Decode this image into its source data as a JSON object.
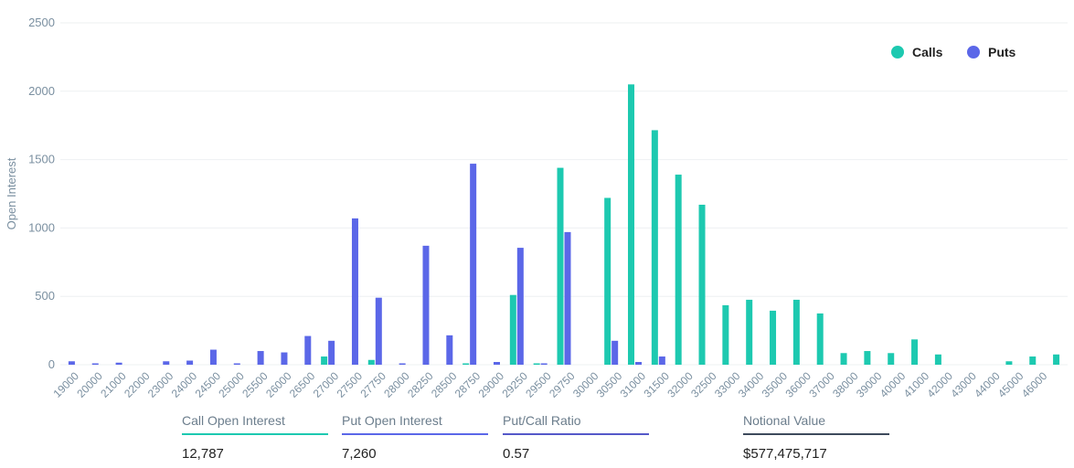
{
  "chart_data": {
    "type": "bar",
    "y_label": "Open Interest",
    "categories": [
      "19000",
      "20000",
      "21000",
      "22000",
      "23000",
      "24000",
      "24500",
      "25000",
      "25500",
      "26000",
      "26500",
      "27000",
      "27500",
      "27750",
      "28000",
      "28250",
      "28500",
      "28750",
      "29000",
      "29250",
      "29500",
      "29750",
      "30000",
      "30500",
      "31000",
      "31500",
      "32000",
      "32500",
      "33000",
      "34000",
      "35000",
      "36000",
      "37000",
      "38000",
      "39000",
      "40000",
      "41000",
      "42000",
      "43000",
      "44000",
      "45000",
      "46000",
      null
    ],
    "series": [
      {
        "name": "Calls",
        "color": "#1dc9b0",
        "values": [
          0,
          0,
          0,
          0,
          0,
          0,
          0,
          0,
          0,
          0,
          0,
          60,
          0,
          35,
          0,
          0,
          0,
          10,
          0,
          510,
          10,
          1440,
          0,
          1220,
          2050,
          1715,
          1390,
          1170,
          435,
          475,
          395,
          475,
          375,
          85,
          100,
          85,
          185,
          75,
          0,
          0,
          25,
          60,
          75
        ]
      },
      {
        "name": "Puts",
        "color": "#5b67e8",
        "values": [
          25,
          10,
          15,
          0,
          25,
          30,
          110,
          10,
          100,
          90,
          210,
          175,
          1070,
          490,
          10,
          870,
          215,
          1470,
          20,
          855,
          10,
          970,
          0,
          175,
          20,
          60,
          0,
          0,
          0,
          0,
          0,
          0,
          0,
          0,
          0,
          0,
          0,
          0,
          0,
          0,
          0,
          0,
          0
        ]
      }
    ],
    "ylim": [
      0,
      2500
    ],
    "yticks": [
      0,
      500,
      1000,
      1500,
      2000,
      2500
    ],
    "grid": true,
    "legend": "top-right"
  },
  "stats": [
    {
      "label": "Call Open Interest",
      "value": "12,787",
      "color": "#1dc9b0"
    },
    {
      "label": "Put Open Interest",
      "value": "7,260",
      "color": "#5b67e8"
    },
    {
      "label": "Put/Call Ratio",
      "value": "0.57",
      "color": "#5558c9"
    },
    {
      "label": "Notional Value",
      "value": "$577,475,717",
      "color": "#3d4a5c"
    }
  ]
}
